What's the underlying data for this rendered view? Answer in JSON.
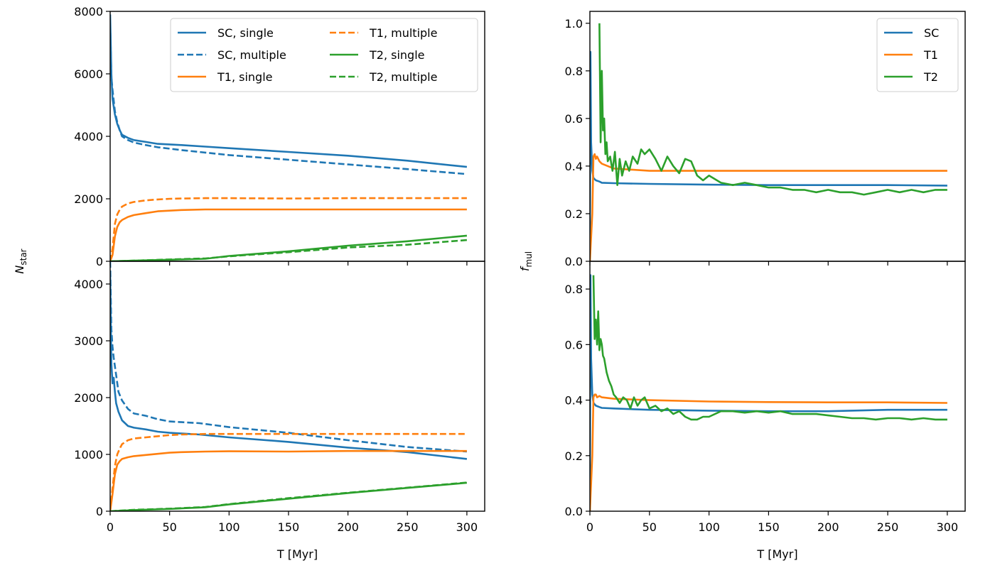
{
  "figure": {
    "ylabel_left_main": "N",
    "ylabel_left_sub": "star",
    "ylabel_right_main": "f",
    "ylabel_right_sub": "mul",
    "xlabel": "T [Myr]"
  },
  "colors": {
    "SC": "#1f77b4",
    "T1": "#ff7f0e",
    "T2": "#2ca02c"
  },
  "chart_data": [
    {
      "id": "top-left",
      "type": "line",
      "xlim": [
        0,
        315
      ],
      "ylim": [
        0,
        8000
      ],
      "xticks": [
        0,
        50,
        100,
        150,
        200,
        250,
        300
      ],
      "xticklabels": [],
      "yticks": [
        0,
        2000,
        4000,
        6000,
        8000
      ],
      "yticklabels": [
        "0",
        "2000",
        "4000",
        "6000",
        "8000"
      ],
      "xlabel": "",
      "legend": {
        "placement": "top-right",
        "columns": 2
      },
      "series": [
        {
          "name": "SC, single",
          "color": "#1f77b4",
          "dash": "solid",
          "x": [
            0,
            1,
            2,
            4,
            6,
            8,
            10,
            15,
            20,
            30,
            40,
            60,
            80,
            100,
            150,
            200,
            250,
            300
          ],
          "y": [
            7900,
            6000,
            5200,
            4700,
            4400,
            4200,
            4050,
            3950,
            3880,
            3820,
            3760,
            3720,
            3670,
            3620,
            3500,
            3380,
            3220,
            3020
          ]
        },
        {
          "name": "SC, multiple",
          "color": "#1f77b4",
          "dash": "dashed",
          "x": [
            0,
            1,
            2,
            4,
            6,
            8,
            10,
            15,
            20,
            30,
            40,
            60,
            80,
            100,
            150,
            200,
            250,
            300
          ],
          "y": [
            7600,
            5900,
            5500,
            4800,
            4450,
            4200,
            4000,
            3880,
            3800,
            3720,
            3650,
            3560,
            3480,
            3400,
            3250,
            3100,
            2950,
            2790
          ]
        },
        {
          "name": "T1, single",
          "color": "#ff7f0e",
          "dash": "solid",
          "x": [
            0,
            2,
            4,
            6,
            8,
            10,
            15,
            20,
            30,
            40,
            50,
            60,
            80,
            100,
            150,
            200,
            250,
            300
          ],
          "y": [
            0,
            200,
            800,
            1100,
            1250,
            1320,
            1420,
            1480,
            1540,
            1600,
            1620,
            1640,
            1660,
            1660,
            1660,
            1660,
            1660,
            1660
          ]
        },
        {
          "name": "T1, multiple",
          "color": "#ff7f0e",
          "dash": "dashed",
          "x": [
            0,
            2,
            4,
            6,
            8,
            10,
            15,
            20,
            30,
            40,
            50,
            60,
            80,
            100,
            150,
            200,
            250,
            300
          ],
          "y": [
            0,
            400,
            1200,
            1500,
            1650,
            1750,
            1850,
            1900,
            1950,
            1980,
            2000,
            2010,
            2020,
            2020,
            2010,
            2020,
            2020,
            2020
          ]
        },
        {
          "name": "T2, single",
          "color": "#2ca02c",
          "dash": "solid",
          "x": [
            0,
            20,
            50,
            80,
            100,
            150,
            200,
            250,
            300
          ],
          "y": [
            0,
            20,
            50,
            80,
            170,
            320,
            500,
            640,
            820
          ]
        },
        {
          "name": "T2, multiple",
          "color": "#2ca02c",
          "dash": "dashed",
          "x": [
            0,
            20,
            50,
            80,
            100,
            150,
            200,
            250,
            300
          ],
          "y": [
            0,
            20,
            60,
            90,
            160,
            290,
            440,
            530,
            680
          ]
        }
      ]
    },
    {
      "id": "bottom-left",
      "type": "line",
      "xlim": [
        0,
        315
      ],
      "ylim": [
        0,
        4400
      ],
      "xticks": [
        0,
        50,
        100,
        150,
        200,
        250,
        300
      ],
      "xticklabels": [
        "0",
        "50",
        "100",
        "150",
        "200",
        "250",
        "300"
      ],
      "yticks": [
        0,
        1000,
        2000,
        3000,
        4000
      ],
      "yticklabels": [
        "0",
        "1000",
        "2000",
        "3000",
        "4000"
      ],
      "xlabel": "T [Myr]",
      "series": [
        {
          "name": "SC, single",
          "color": "#1f77b4",
          "dash": "solid",
          "x": [
            0,
            1,
            2,
            3,
            4,
            5,
            7,
            10,
            15,
            20,
            30,
            40,
            50,
            75,
            100,
            150,
            200,
            250,
            300
          ],
          "y": [
            4200,
            2600,
            2250,
            2350,
            2100,
            1900,
            1750,
            1600,
            1500,
            1470,
            1440,
            1400,
            1380,
            1350,
            1300,
            1220,
            1120,
            1040,
            920
          ]
        },
        {
          "name": "SC, multiple",
          "color": "#1f77b4",
          "dash": "dashed",
          "x": [
            0,
            1,
            2,
            3,
            5,
            7,
            10,
            15,
            20,
            30,
            40,
            50,
            75,
            100,
            150,
            200,
            250,
            300
          ],
          "y": [
            4400,
            3200,
            2900,
            2700,
            2400,
            2100,
            1950,
            1800,
            1720,
            1680,
            1620,
            1580,
            1550,
            1480,
            1380,
            1250,
            1130,
            1050
          ]
        },
        {
          "name": "T1, single",
          "color": "#ff7f0e",
          "dash": "solid",
          "x": [
            0,
            2,
            4,
            6,
            8,
            10,
            15,
            20,
            30,
            40,
            50,
            60,
            80,
            100,
            150,
            200,
            250,
            300
          ],
          "y": [
            0,
            300,
            650,
            820,
            880,
            920,
            950,
            970,
            990,
            1010,
            1030,
            1040,
            1050,
            1055,
            1050,
            1060,
            1060,
            1060
          ]
        },
        {
          "name": "T1, multiple",
          "color": "#ff7f0e",
          "dash": "dashed",
          "x": [
            0,
            2,
            4,
            6,
            8,
            10,
            15,
            20,
            30,
            40,
            50,
            60,
            80,
            100,
            150,
            200,
            250,
            300
          ],
          "y": [
            0,
            400,
            800,
            1000,
            1100,
            1180,
            1250,
            1280,
            1300,
            1320,
            1340,
            1350,
            1360,
            1360,
            1360,
            1360,
            1360,
            1360
          ]
        },
        {
          "name": "T2, single",
          "color": "#2ca02c",
          "dash": "solid",
          "x": [
            0,
            20,
            50,
            80,
            100,
            150,
            200,
            250,
            300
          ],
          "y": [
            0,
            20,
            40,
            70,
            120,
            220,
            320,
            410,
            500
          ]
        },
        {
          "name": "T2, multiple",
          "color": "#2ca02c",
          "dash": "dashed",
          "x": [
            0,
            20,
            50,
            80,
            100,
            150,
            200,
            250,
            300
          ],
          "y": [
            0,
            25,
            45,
            75,
            125,
            230,
            325,
            415,
            505
          ]
        }
      ]
    },
    {
      "id": "top-right",
      "type": "line",
      "xlim": [
        0,
        315
      ],
      "ylim": [
        0,
        1.05
      ],
      "xticks": [
        0,
        50,
        100,
        150,
        200,
        250,
        300
      ],
      "xticklabels": [],
      "yticks": [
        0,
        0.2,
        0.4,
        0.6,
        0.8,
        1.0
      ],
      "yticklabels": [
        "0.0",
        "0.2",
        "0.4",
        "0.6",
        "0.8",
        "1.0"
      ],
      "xlabel": "",
      "legend": {
        "placement": "top-right",
        "columns": 1
      },
      "series": [
        {
          "name": "SC",
          "color": "#1f77b4",
          "dash": "solid",
          "x": [
            0,
            0.5,
            1,
            2,
            3,
            5,
            8,
            10,
            20,
            50,
            100,
            150,
            200,
            250,
            300
          ],
          "y": [
            0.0,
            0.88,
            0.5,
            0.38,
            0.35,
            0.34,
            0.335,
            0.33,
            0.328,
            0.325,
            0.322,
            0.32,
            0.32,
            0.32,
            0.318
          ]
        },
        {
          "name": "T1",
          "color": "#ff7f0e",
          "dash": "solid",
          "x": [
            0,
            2,
            3,
            4,
            5,
            6,
            8,
            10,
            20,
            50,
            100,
            150,
            200,
            250,
            300
          ],
          "y": [
            0.0,
            0.2,
            0.44,
            0.45,
            0.43,
            0.44,
            0.42,
            0.41,
            0.39,
            0.38,
            0.38,
            0.38,
            0.38,
            0.38,
            0.38
          ]
        },
        {
          "name": "T2",
          "color": "#2ca02c",
          "dash": "solid",
          "x": [
            8,
            9,
            10,
            11,
            12,
            13,
            14,
            15,
            17,
            19,
            21,
            23,
            25,
            27,
            30,
            33,
            36,
            40,
            43,
            46,
            50,
            55,
            60,
            65,
            70,
            75,
            80,
            85,
            90,
            95,
            100,
            110,
            120,
            130,
            140,
            150,
            160,
            170,
            180,
            190,
            200,
            210,
            220,
            230,
            240,
            250,
            260,
            270,
            280,
            290,
            300
          ],
          "y": [
            1.0,
            0.5,
            0.8,
            0.55,
            0.6,
            0.45,
            0.5,
            0.42,
            0.44,
            0.38,
            0.46,
            0.32,
            0.43,
            0.36,
            0.42,
            0.38,
            0.44,
            0.41,
            0.47,
            0.45,
            0.47,
            0.43,
            0.38,
            0.44,
            0.4,
            0.37,
            0.43,
            0.42,
            0.36,
            0.34,
            0.36,
            0.33,
            0.32,
            0.33,
            0.32,
            0.31,
            0.31,
            0.3,
            0.3,
            0.29,
            0.3,
            0.29,
            0.29,
            0.28,
            0.29,
            0.3,
            0.29,
            0.3,
            0.29,
            0.3,
            0.3
          ]
        }
      ]
    },
    {
      "id": "bottom-right",
      "type": "line",
      "xlim": [
        0,
        315
      ],
      "ylim": [
        0,
        0.9
      ],
      "xticks": [
        0,
        50,
        100,
        150,
        200,
        250,
        300
      ],
      "xticklabels": [
        "0",
        "50",
        "100",
        "150",
        "200",
        "250",
        "300"
      ],
      "yticks": [
        0,
        0.2,
        0.4,
        0.6,
        0.8
      ],
      "yticklabels": [
        "0.0",
        "0.2",
        "0.4",
        "0.6",
        "0.8"
      ],
      "xlabel": "T [Myr]",
      "series": [
        {
          "name": "SC",
          "color": "#1f77b4",
          "dash": "solid",
          "x": [
            0,
            0.5,
            1,
            2,
            3,
            5,
            8,
            10,
            20,
            50,
            100,
            150,
            200,
            250,
            300
          ],
          "y": [
            0.0,
            0.85,
            0.55,
            0.42,
            0.39,
            0.38,
            0.375,
            0.372,
            0.37,
            0.365,
            0.362,
            0.36,
            0.36,
            0.365,
            0.365
          ]
        },
        {
          "name": "T1",
          "color": "#ff7f0e",
          "dash": "solid",
          "x": [
            0,
            2,
            3,
            4,
            5,
            6,
            8,
            10,
            20,
            50,
            100,
            150,
            200,
            250,
            300
          ],
          "y": [
            0.0,
            0.2,
            0.41,
            0.42,
            0.42,
            0.41,
            0.415,
            0.41,
            0.405,
            0.4,
            0.395,
            0.393,
            0.392,
            0.392,
            0.39
          ]
        },
        {
          "name": "T2",
          "color": "#2ca02c",
          "dash": "solid",
          "x": [
            3,
            4,
            5,
            6,
            7,
            8,
            9,
            10,
            11,
            12,
            14,
            16,
            18,
            20,
            22,
            25,
            28,
            31,
            34,
            37,
            40,
            43,
            46,
            50,
            55,
            60,
            65,
            70,
            75,
            80,
            85,
            90,
            95,
            100,
            110,
            120,
            130,
            140,
            150,
            160,
            170,
            180,
            190,
            200,
            210,
            220,
            230,
            240,
            250,
            260,
            270,
            280,
            290,
            300
          ],
          "y": [
            0.85,
            0.62,
            0.69,
            0.6,
            0.72,
            0.58,
            0.62,
            0.6,
            0.56,
            0.55,
            0.5,
            0.47,
            0.45,
            0.42,
            0.41,
            0.39,
            0.41,
            0.4,
            0.37,
            0.41,
            0.38,
            0.4,
            0.41,
            0.37,
            0.38,
            0.36,
            0.37,
            0.35,
            0.36,
            0.34,
            0.33,
            0.33,
            0.34,
            0.34,
            0.36,
            0.36,
            0.355,
            0.36,
            0.355,
            0.36,
            0.35,
            0.35,
            0.35,
            0.345,
            0.34,
            0.335,
            0.335,
            0.33,
            0.335,
            0.335,
            0.33,
            0.335,
            0.33,
            0.33
          ]
        }
      ]
    }
  ]
}
